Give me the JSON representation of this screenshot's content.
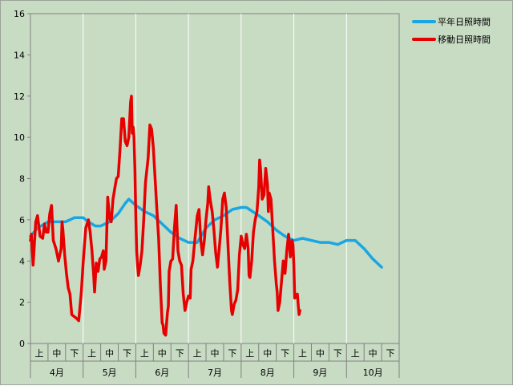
{
  "chart_data": {
    "type": "line",
    "ylim": [
      0,
      16
    ],
    "y_ticks": [
      "0",
      "2",
      "4",
      "6",
      "8",
      "10",
      "12",
      "14",
      "16"
    ],
    "grid": "vertical",
    "legend_position": "right",
    "months": [
      "4月",
      "5月",
      "6月",
      "7月",
      "8月",
      "9月",
      "10月"
    ],
    "decades": [
      "上",
      "中",
      "下"
    ],
    "x_range": [
      0,
      21
    ],
    "series": [
      {
        "name": "平年日照時間",
        "color": "#1aa6e2",
        "points": [
          [
            0,
            5.2
          ],
          [
            0.4,
            5.6
          ],
          [
            1,
            5.9
          ],
          [
            1.5,
            5.9
          ],
          [
            2,
            5.9
          ],
          [
            2.5,
            6.1
          ],
          [
            3,
            6.1
          ],
          [
            3.3,
            5.9
          ],
          [
            3.7,
            5.7
          ],
          [
            4,
            5.7
          ],
          [
            4.5,
            5.9
          ],
          [
            5,
            6.3
          ],
          [
            5.4,
            6.8
          ],
          [
            5.6,
            7.0
          ],
          [
            6,
            6.7
          ],
          [
            6.5,
            6.4
          ],
          [
            7,
            6.2
          ],
          [
            7.5,
            5.8
          ],
          [
            8,
            5.4
          ],
          [
            8.5,
            5.1
          ],
          [
            9,
            4.9
          ],
          [
            9.5,
            4.9
          ],
          [
            10,
            5.6
          ],
          [
            10.5,
            6.0
          ],
          [
            11,
            6.2
          ],
          [
            11.5,
            6.5
          ],
          [
            12,
            6.6
          ],
          [
            12.3,
            6.6
          ],
          [
            13,
            6.2
          ],
          [
            13.5,
            5.9
          ],
          [
            14,
            5.5
          ],
          [
            14.5,
            5.2
          ],
          [
            15,
            5.0
          ],
          [
            15.5,
            5.1
          ],
          [
            16,
            5.0
          ],
          [
            16.5,
            4.9
          ],
          [
            17,
            4.9
          ],
          [
            17.5,
            4.8
          ],
          [
            18,
            5.0
          ],
          [
            18.5,
            5.0
          ],
          [
            19,
            4.6
          ],
          [
            19.5,
            4.1
          ],
          [
            20,
            3.7
          ]
        ]
      },
      {
        "name": "移動日照時間",
        "color": "#e60000",
        "points": [
          [
            0,
            5.0
          ],
          [
            0.05,
            5.3
          ],
          [
            0.15,
            3.8
          ],
          [
            0.3,
            5.9
          ],
          [
            0.4,
            6.2
          ],
          [
            0.55,
            5.2
          ],
          [
            0.7,
            5.1
          ],
          [
            0.8,
            5.8
          ],
          [
            0.9,
            5.4
          ],
          [
            1.0,
            5.4
          ],
          [
            1.1,
            6.3
          ],
          [
            1.2,
            6.7
          ],
          [
            1.3,
            5.0
          ],
          [
            1.45,
            4.6
          ],
          [
            1.6,
            4.0
          ],
          [
            1.75,
            4.6
          ],
          [
            1.8,
            5.9
          ],
          [
            1.85,
            5.5
          ],
          [
            1.95,
            4.3
          ],
          [
            2.05,
            3.4
          ],
          [
            2.15,
            2.7
          ],
          [
            2.25,
            2.4
          ],
          [
            2.35,
            1.4
          ],
          [
            2.5,
            1.3
          ],
          [
            2.65,
            1.2
          ],
          [
            2.75,
            1.1
          ],
          [
            2.9,
            2.5
          ],
          [
            3.0,
            3.9
          ],
          [
            3.15,
            5.6
          ],
          [
            3.3,
            6.0
          ],
          [
            3.4,
            5.4
          ],
          [
            3.5,
            4.5
          ],
          [
            3.6,
            3.3
          ],
          [
            3.65,
            2.5
          ],
          [
            3.75,
            3.9
          ],
          [
            3.85,
            3.5
          ],
          [
            3.95,
            4.1
          ],
          [
            4.05,
            4.2
          ],
          [
            4.15,
            4.5
          ],
          [
            4.2,
            3.6
          ],
          [
            4.3,
            4.0
          ],
          [
            4.35,
            5.6
          ],
          [
            4.4,
            7.1
          ],
          [
            4.5,
            6.1
          ],
          [
            4.6,
            5.9
          ],
          [
            4.7,
            7.0
          ],
          [
            4.8,
            7.5
          ],
          [
            4.9,
            8.0
          ],
          [
            5.0,
            8.1
          ],
          [
            5.1,
            9.4
          ],
          [
            5.2,
            10.9
          ],
          [
            5.3,
            10.9
          ],
          [
            5.4,
            9.8
          ],
          [
            5.5,
            9.6
          ],
          [
            5.6,
            10.0
          ],
          [
            5.7,
            11.7
          ],
          [
            5.75,
            12.0
          ],
          [
            5.8,
            10.2
          ],
          [
            5.85,
            10.5
          ],
          [
            5.9,
            10.0
          ],
          [
            5.95,
            8.5
          ],
          [
            6.0,
            6.2
          ],
          [
            6.05,
            4.5
          ],
          [
            6.1,
            3.8
          ],
          [
            6.15,
            3.3
          ],
          [
            6.25,
            3.8
          ],
          [
            6.35,
            4.5
          ],
          [
            6.45,
            6.0
          ],
          [
            6.55,
            7.8
          ],
          [
            6.7,
            9.0
          ],
          [
            6.8,
            10.6
          ],
          [
            6.9,
            10.4
          ],
          [
            7.0,
            9.5
          ],
          [
            7.1,
            8.0
          ],
          [
            7.2,
            6.5
          ],
          [
            7.3,
            5.1
          ],
          [
            7.4,
            2.8
          ],
          [
            7.5,
            1.0
          ],
          [
            7.55,
            0.9
          ],
          [
            7.6,
            0.5
          ],
          [
            7.7,
            0.4
          ],
          [
            7.8,
            1.5
          ],
          [
            7.85,
            1.8
          ],
          [
            7.9,
            3.5
          ],
          [
            8.0,
            4.0
          ],
          [
            8.1,
            4.1
          ],
          [
            8.2,
            5.6
          ],
          [
            8.3,
            6.7
          ],
          [
            8.4,
            4.5
          ],
          [
            8.5,
            4.0
          ],
          [
            8.6,
            3.8
          ],
          [
            8.7,
            2.4
          ],
          [
            8.8,
            1.6
          ],
          [
            8.9,
            2.0
          ],
          [
            9.0,
            2.3
          ],
          [
            9.1,
            2.2
          ],
          [
            9.15,
            3.6
          ],
          [
            9.25,
            4.0
          ],
          [
            9.35,
            4.9
          ],
          [
            9.5,
            6.2
          ],
          [
            9.6,
            6.5
          ],
          [
            9.7,
            5.0
          ],
          [
            9.8,
            4.3
          ],
          [
            9.9,
            5.0
          ],
          [
            10.0,
            6.0
          ],
          [
            10.1,
            6.8
          ],
          [
            10.15,
            7.6
          ],
          [
            10.25,
            6.9
          ],
          [
            10.35,
            6.4
          ],
          [
            10.45,
            5.5
          ],
          [
            10.55,
            4.4
          ],
          [
            10.65,
            3.7
          ],
          [
            10.75,
            4.6
          ],
          [
            10.85,
            5.6
          ],
          [
            10.95,
            7.0
          ],
          [
            11.05,
            7.3
          ],
          [
            11.15,
            6.6
          ],
          [
            11.25,
            4.8
          ],
          [
            11.35,
            3.0
          ],
          [
            11.45,
            1.6
          ],
          [
            11.5,
            1.4
          ],
          [
            11.6,
            1.9
          ],
          [
            11.7,
            2.1
          ],
          [
            11.8,
            2.6
          ],
          [
            11.9,
            4.3
          ],
          [
            12.0,
            5.2
          ],
          [
            12.1,
            4.8
          ],
          [
            12.2,
            4.6
          ],
          [
            12.3,
            5.3
          ],
          [
            12.4,
            4.6
          ],
          [
            12.45,
            3.3
          ],
          [
            12.5,
            3.2
          ],
          [
            12.6,
            4.0
          ],
          [
            12.7,
            5.4
          ],
          [
            12.8,
            6.0
          ],
          [
            12.9,
            6.4
          ],
          [
            13.0,
            7.6
          ],
          [
            13.05,
            8.9
          ],
          [
            13.1,
            8.5
          ],
          [
            13.2,
            7.0
          ],
          [
            13.3,
            7.2
          ],
          [
            13.4,
            8.5
          ],
          [
            13.5,
            7.7
          ],
          [
            13.55,
            6.4
          ],
          [
            13.6,
            7.3
          ],
          [
            13.7,
            7.0
          ],
          [
            13.8,
            5.5
          ],
          [
            13.9,
            4.0
          ],
          [
            14.0,
            2.9
          ],
          [
            14.05,
            2.5
          ],
          [
            14.1,
            1.6
          ],
          [
            14.2,
            2.0
          ],
          [
            14.3,
            3.0
          ],
          [
            14.4,
            4.0
          ],
          [
            14.5,
            3.4
          ],
          [
            14.6,
            4.5
          ],
          [
            14.7,
            5.3
          ],
          [
            14.75,
            4.8
          ],
          [
            14.8,
            4.2
          ],
          [
            14.85,
            4.4
          ],
          [
            14.9,
            5.0
          ],
          [
            14.95,
            4.8
          ],
          [
            15.0,
            3.8
          ],
          [
            15.05,
            2.2
          ],
          [
            15.15,
            2.3
          ],
          [
            15.2,
            2.4
          ],
          [
            15.25,
            1.9
          ],
          [
            15.3,
            1.4
          ],
          [
            15.35,
            1.6
          ]
        ]
      }
    ]
  }
}
